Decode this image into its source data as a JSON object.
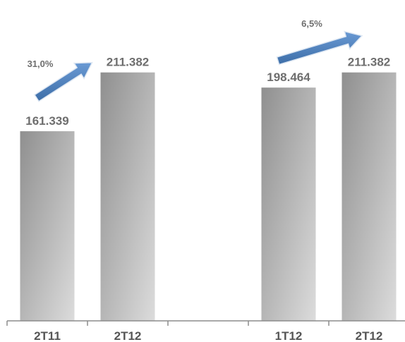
{
  "chart_data": {
    "type": "bar",
    "categories": [
      "2T11",
      "2T12",
      "",
      "1T12",
      "2T12"
    ],
    "values": [
      161339,
      211382,
      null,
      198464,
      211382
    ],
    "value_labels": [
      "161.339",
      "211.382",
      "",
      "198.464",
      "211.382"
    ],
    "ylim": [
      0,
      240000
    ],
    "grid": false,
    "legend": "none",
    "bar_color": "#a6a6a6",
    "arrow_color": "#4f81bd",
    "annotations": [
      {
        "text": "31,0%",
        "from_category": 0,
        "to_category": 1
      },
      {
        "text": "6,5%",
        "from_category": 3,
        "to_category": 4
      }
    ]
  }
}
